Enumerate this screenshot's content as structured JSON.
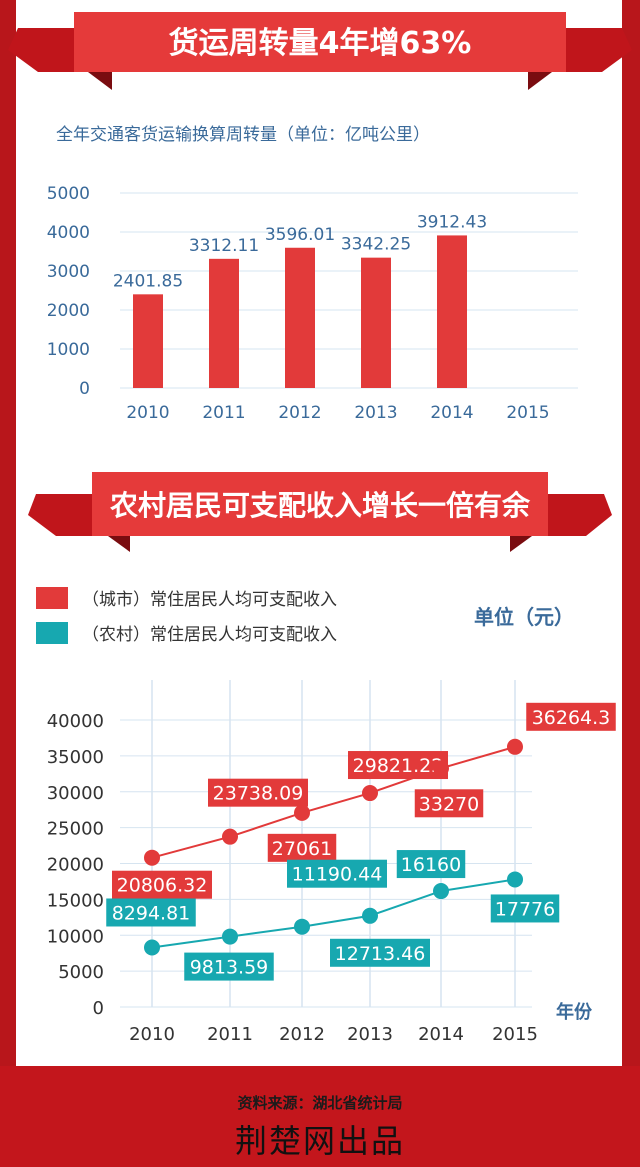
{
  "colors": {
    "urban": "#e23a3a",
    "rural": "#17a8b0",
    "bar": "#e23a3a",
    "axis_text": "#3a6a9a",
    "grid": "#d6e4f0",
    "background": "#b8161b"
  },
  "section1": {
    "banner": "货运周转量4年增63%",
    "subtitle": "全年交通客货运输换算周转量（单位：亿吨公里）"
  },
  "section2": {
    "banner": "农村居民可支配收入增长一倍有余",
    "unit": "单位（元）",
    "xlabel": "年份"
  },
  "footer": {
    "source": "资料来源：湖北省统计局",
    "brand": "荆楚网出品"
  },
  "chart_data": [
    {
      "type": "bar",
      "title": "全年交通客货运输换算周转量（单位：亿吨公里）",
      "categories": [
        "2010",
        "2011",
        "2012",
        "2013",
        "2014",
        "2015"
      ],
      "values": [
        2401.85,
        3312.11,
        3596.01,
        3342.25,
        3912.43,
        null
      ],
      "value_labels": [
        "2401.85",
        "3312.11",
        "3596.01",
        "3342.25",
        "3912.43",
        ""
      ],
      "yticks": [
        "0",
        "1000",
        "2000",
        "3000",
        "4000",
        "5000"
      ],
      "ylim": [
        0,
        5000
      ],
      "grid": true
    },
    {
      "type": "line",
      "categories": [
        "2010",
        "2011",
        "2012",
        "2013",
        "2014",
        "2015"
      ],
      "ylim": [
        0,
        40000
      ],
      "yticks": [
        "0",
        "5000",
        "10000",
        "15000",
        "20000",
        "25000",
        "30000",
        "35000",
        "40000"
      ],
      "ylabel": "单位（元）",
      "xlabel": "年份",
      "grid": true,
      "legend_position": "top-left",
      "series": [
        {
          "name": "（城市）常住居民人均可支配收入",
          "values": [
            20806.32,
            23738.09,
            27061,
            29821.22,
            33270,
            36264.3
          ],
          "labels": [
            "20806.32",
            "23738.09",
            "27061",
            "29821.22",
            "33270",
            "36264.3"
          ]
        },
        {
          "name": "（农村）常住居民人均可支配收入",
          "values": [
            8294.81,
            9813.59,
            11190.44,
            12713.46,
            16160,
            17776
          ],
          "labels": [
            "8294.81",
            "9813.59",
            "11190.44",
            "12713.46",
            "16160",
            "17776"
          ]
        }
      ]
    }
  ]
}
